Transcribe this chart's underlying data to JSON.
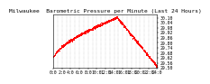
{
  "title": "Milwaukee  Barometric Pressure per Minute (Last 24 Hours)",
  "background_color": "#ffffff",
  "plot_bg_color": "#ffffff",
  "line_color": "#ff0000",
  "grid_color": "#b0b0b0",
  "ylim": [
    29.5,
    30.14
  ],
  "yticks": [
    29.5,
    29.56,
    29.62,
    29.68,
    29.74,
    29.8,
    29.86,
    29.92,
    29.98,
    30.04,
    30.1
  ],
  "ytick_labels": [
    "29.50",
    "29.56",
    "29.62",
    "29.68",
    "29.74",
    "29.80",
    "29.86",
    "29.92",
    "29.98",
    "30.04",
    "30.10"
  ],
  "num_points": 1440,
  "xtick_positions": [
    0,
    120,
    240,
    360,
    480,
    600,
    720,
    840,
    960,
    1080,
    1200,
    1320,
    1439
  ],
  "xtick_labels": [
    "0:0",
    "2:0",
    "4:0",
    "6:0",
    "8:0",
    "10:0",
    "12:0",
    "14:0",
    "16:0",
    "18:0",
    "20:0",
    "22:0",
    "24:0"
  ],
  "vgrid_positions": [
    0,
    60,
    120,
    180,
    240,
    300,
    360,
    420,
    480,
    540,
    600,
    660,
    720,
    780,
    840,
    900,
    960,
    1020,
    1080,
    1140,
    1200,
    1260,
    1320,
    1380,
    1439
  ],
  "title_fontsize": 4.5,
  "tick_fontsize": 3.5,
  "marker_size": 0.6,
  "peak_x": 880,
  "start_val": 29.615,
  "peak_val": 30.095,
  "end_val": 29.505,
  "noise_std": 0.007
}
